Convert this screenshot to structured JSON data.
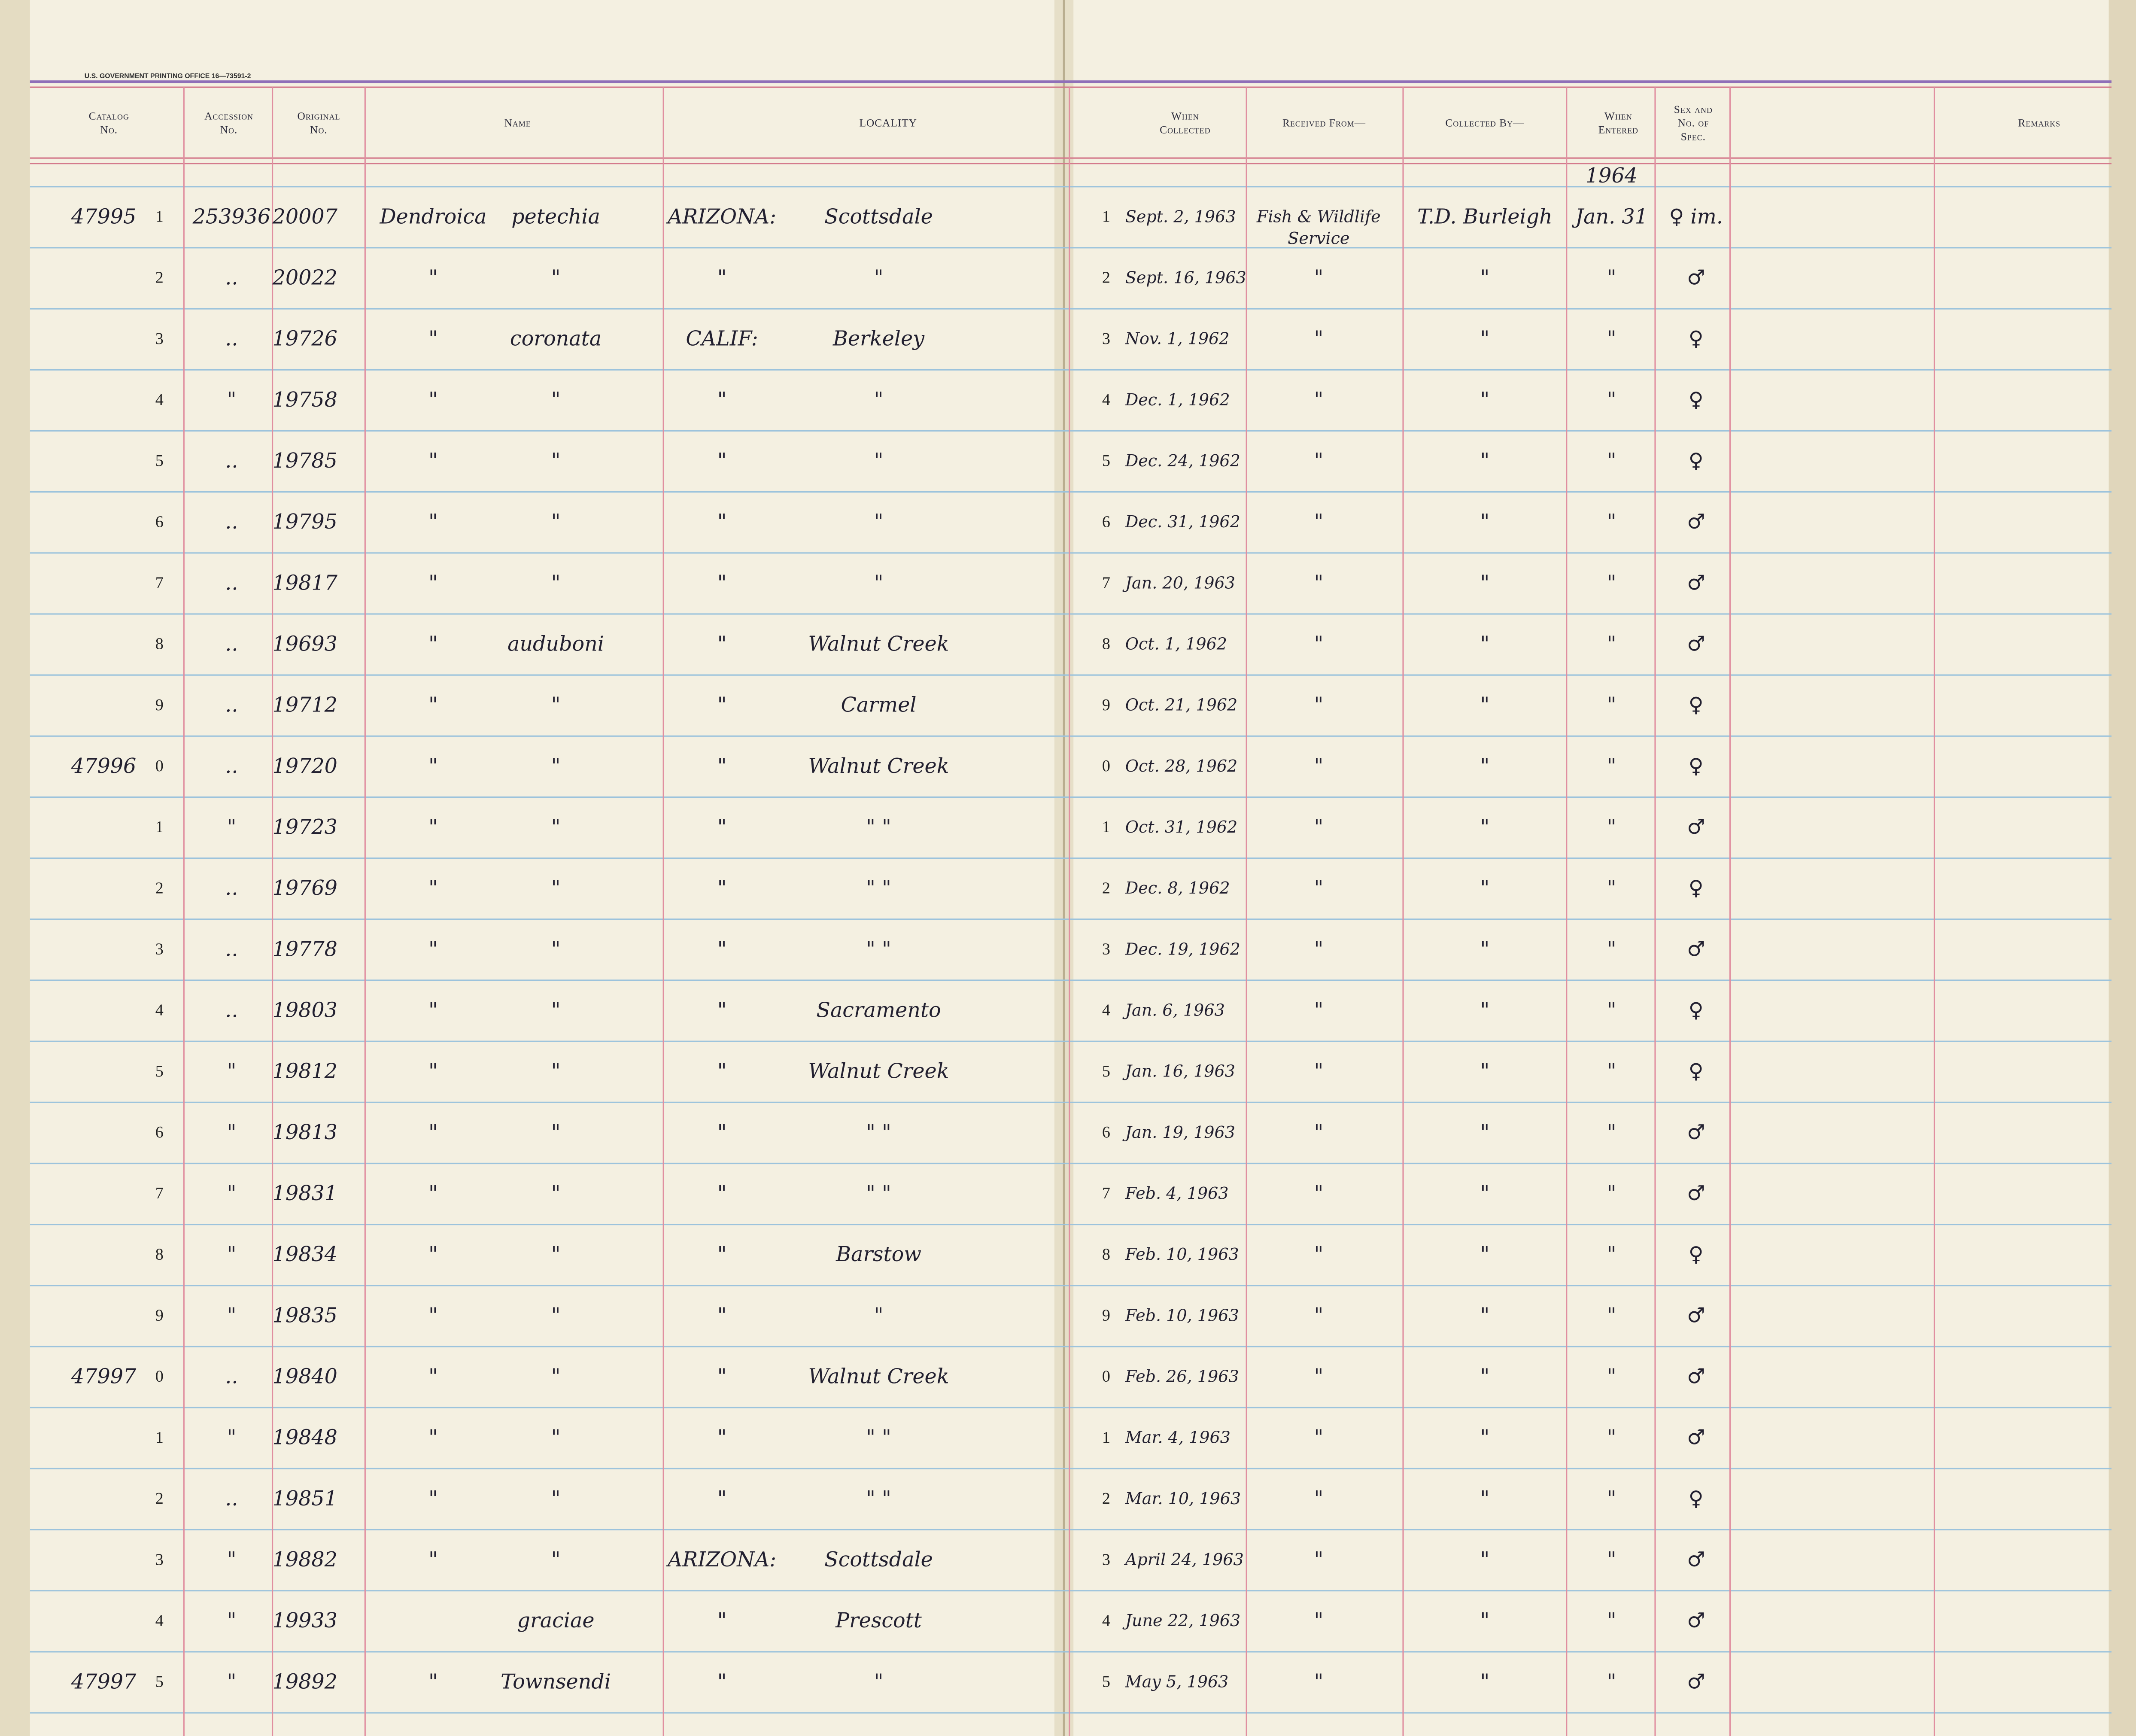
{
  "header": {
    "printer": "U.S. GOVERNMENT PRINTING OFFICE   16—73591-2",
    "columns": [
      {
        "key": "catalog",
        "lines": [
          "Catalog",
          "No."
        ]
      },
      {
        "key": "accession",
        "lines": [
          "Accession",
          "No."
        ]
      },
      {
        "key": "original",
        "lines": [
          "Original",
          "No."
        ]
      },
      {
        "key": "name",
        "lines": [
          "Name"
        ]
      },
      {
        "key": "locality",
        "lines": [
          "LOCALITY"
        ]
      },
      {
        "key": "collected",
        "lines": [
          "When",
          "Collected"
        ]
      },
      {
        "key": "received",
        "lines": [
          "Received From—"
        ]
      },
      {
        "key": "collected_by",
        "lines": [
          "Collected By—"
        ]
      },
      {
        "key": "entered",
        "lines": [
          "When",
          "Entered"
        ]
      },
      {
        "key": "sex",
        "lines": [
          "Sex and",
          "No. of",
          "Spec."
        ]
      },
      {
        "key": "remarks",
        "lines": [
          "Remarks"
        ]
      }
    ],
    "entered_year": "1964"
  },
  "table": {
    "rows": [
      {
        "catalog": "47995",
        "num": "1",
        "accession": "253936",
        "original": "20007",
        "genus": "Dendroica",
        "species": "petechia",
        "state": "ARIZONA:",
        "city": "Scottsdale",
        "cnum": "1",
        "collected": "Sept. 2, 1963",
        "received": [
          "Fish & Wildlife",
          "Service"
        ],
        "collected_by": "T.D. Burleigh",
        "entered": "Jan. 31",
        "sex": "♀ im."
      },
      {
        "num": "2",
        "accession": "..",
        "original": "20022",
        "genus": "\"",
        "species": "\"",
        "state": "\"",
        "city": "\"",
        "cnum": "2",
        "collected": "Sept. 16, 1963",
        "received": "\"",
        "collected_by": "\"",
        "entered": "\"",
        "sex": "♂"
      },
      {
        "num": "3",
        "accession": "..",
        "original": "19726",
        "genus": "\"",
        "species": "coronata",
        "state": "CALIF:",
        "city": "Berkeley",
        "cnum": "3",
        "collected": "Nov. 1, 1962",
        "received": "\"",
        "collected_by": "\"",
        "entered": "\"",
        "sex": "♀"
      },
      {
        "num": "4",
        "accession": "\"",
        "original": "19758",
        "genus": "\"",
        "species": "\"",
        "state": "\"",
        "city": "\"",
        "cnum": "4",
        "collected": "Dec. 1, 1962",
        "received": "\"",
        "collected_by": "\"",
        "entered": "\"",
        "sex": "♀"
      },
      {
        "num": "5",
        "accession": "..",
        "original": "19785",
        "genus": "\"",
        "species": "\"",
        "state": "\"",
        "city": "\"",
        "cnum": "5",
        "collected": "Dec. 24, 1962",
        "received": "\"",
        "collected_by": "\"",
        "entered": "\"",
        "sex": "♀"
      },
      {
        "num": "6",
        "accession": "..",
        "original": "19795",
        "genus": "\"",
        "species": "\"",
        "state": "\"",
        "city": "\"",
        "cnum": "6",
        "collected": "Dec. 31, 1962",
        "received": "\"",
        "collected_by": "\"",
        "entered": "\"",
        "sex": "♂"
      },
      {
        "num": "7",
        "accession": "..",
        "original": "19817",
        "genus": "\"",
        "species": "\"",
        "state": "\"",
        "city": "\"",
        "cnum": "7",
        "collected": "Jan. 20, 1963",
        "received": "\"",
        "collected_by": "\"",
        "entered": "\"",
        "sex": "♂"
      },
      {
        "num": "8",
        "accession": "..",
        "original": "19693",
        "genus": "\"",
        "species": "auduboni",
        "state": "\"",
        "city": "Walnut Creek",
        "cnum": "8",
        "collected": "Oct. 1, 1962",
        "received": "\"",
        "collected_by": "\"",
        "entered": "\"",
        "sex": "♂"
      },
      {
        "num": "9",
        "accession": "..",
        "original": "19712",
        "genus": "\"",
        "species": "\"",
        "state": "\"",
        "city": "Carmel",
        "cnum": "9",
        "collected": "Oct. 21, 1962",
        "received": "\"",
        "collected_by": "\"",
        "entered": "\"",
        "sex": "♀"
      },
      {
        "catalog": "47996",
        "num": "0",
        "accession": "..",
        "original": "19720",
        "genus": "\"",
        "species": "\"",
        "state": "\"",
        "city": "Walnut Creek",
        "cnum": "0",
        "collected": "Oct. 28, 1962",
        "received": "\"",
        "collected_by": "\"",
        "entered": "\"",
        "sex": "♀"
      },
      {
        "num": "1",
        "accession": "\"",
        "original": "19723",
        "genus": "\"",
        "species": "\"",
        "state": "\"",
        "city": "\"   \"",
        "cnum": "1",
        "collected": "Oct. 31, 1962",
        "received": "\"",
        "collected_by": "\"",
        "entered": "\"",
        "sex": "♂"
      },
      {
        "num": "2",
        "accession": "..",
        "original": "19769",
        "genus": "\"",
        "species": "\"",
        "state": "\"",
        "city": "\"   \"",
        "cnum": "2",
        "collected": "Dec. 8, 1962",
        "received": "\"",
        "collected_by": "\"",
        "entered": "\"",
        "sex": "♀"
      },
      {
        "num": "3",
        "accession": "..",
        "original": "19778",
        "genus": "\"",
        "species": "\"",
        "state": "\"",
        "city": "\"   \"",
        "cnum": "3",
        "collected": "Dec. 19, 1962",
        "received": "\"",
        "collected_by": "\"",
        "entered": "\"",
        "sex": "♂"
      },
      {
        "num": "4",
        "accession": "..",
        "original": "19803",
        "genus": "\"",
        "species": "\"",
        "state": "\"",
        "city": "Sacramento",
        "cnum": "4",
        "collected": "Jan. 6, 1963",
        "received": "\"",
        "collected_by": "\"",
        "entered": "\"",
        "sex": "♀"
      },
      {
        "num": "5",
        "accession": "\"",
        "original": "19812",
        "genus": "\"",
        "species": "\"",
        "state": "\"",
        "city": "Walnut Creek",
        "cnum": "5",
        "collected": "Jan. 16, 1963",
        "received": "\"",
        "collected_by": "\"",
        "entered": "\"",
        "sex": "♀"
      },
      {
        "num": "6",
        "accession": "\"",
        "original": "19813",
        "genus": "\"",
        "species": "\"",
        "state": "\"",
        "city": "\"   \"",
        "cnum": "6",
        "collected": "Jan. 19, 1963",
        "received": "\"",
        "collected_by": "\"",
        "entered": "\"",
        "sex": "♂"
      },
      {
        "num": "7",
        "accession": "\"",
        "original": "19831",
        "genus": "\"",
        "species": "\"",
        "state": "\"",
        "city": "\"   \"",
        "cnum": "7",
        "collected": "Feb. 4, 1963",
        "received": "\"",
        "collected_by": "\"",
        "entered": "\"",
        "sex": "♂"
      },
      {
        "num": "8",
        "accession": "\"",
        "original": "19834",
        "genus": "\"",
        "species": "\"",
        "state": "\"",
        "city": "Barstow",
        "cnum": "8",
        "collected": "Feb. 10, 1963",
        "received": "\"",
        "collected_by": "\"",
        "entered": "\"",
        "sex": "♀"
      },
      {
        "num": "9",
        "accession": "\"",
        "original": "19835",
        "genus": "\"",
        "species": "\"",
        "state": "\"",
        "city": "\"",
        "cnum": "9",
        "collected": "Feb. 10, 1963",
        "received": "\"",
        "collected_by": "\"",
        "entered": "\"",
        "sex": "♂"
      },
      {
        "catalog": "47997",
        "num": "0",
        "accession": "..",
        "original": "19840",
        "genus": "\"",
        "species": "\"",
        "state": "\"",
        "city": "Walnut Creek",
        "cnum": "0",
        "collected": "Feb. 26, 1963",
        "received": "\"",
        "collected_by": "\"",
        "entered": "\"",
        "sex": "♂"
      },
      {
        "num": "1",
        "accession": "\"",
        "original": "19848",
        "genus": "\"",
        "species": "\"",
        "state": "\"",
        "city": "\"   \"",
        "cnum": "1",
        "collected": "Mar. 4, 1963",
        "received": "\"",
        "collected_by": "\"",
        "entered": "\"",
        "sex": "♂"
      },
      {
        "num": "2",
        "accession": "..",
        "original": "19851",
        "genus": "\"",
        "species": "\"",
        "state": "\"",
        "city": "\"   \"",
        "cnum": "2",
        "collected": "Mar. 10, 1963",
        "received": "\"",
        "collected_by": "\"",
        "entered": "\"",
        "sex": "♀"
      },
      {
        "num": "3",
        "accession": "\"",
        "original": "19882",
        "genus": "\"",
        "species": "\"",
        "state": "ARIZONA:",
        "city": "Scottsdale",
        "cnum": "3",
        "collected": "April 24, 1963",
        "received": "\"",
        "collected_by": "\"",
        "entered": "\"",
        "sex": "♂"
      },
      {
        "num": "4",
        "accession": "\"",
        "original": "19933",
        "species": "graciae",
        "state": "\"",
        "city": "Prescott",
        "cnum": "4",
        "collected": "June 22, 1963",
        "received": "\"",
        "collected_by": "\"",
        "entered": "\"",
        "sex": "♂"
      },
      {
        "catalog": "47997",
        "num": "5",
        "accession": "\"",
        "original": "19892",
        "genus": "\"",
        "species": "Townsendi",
        "state": "\"",
        "city": "\"",
        "cnum": "5",
        "collected": "May 5, 1963",
        "received": "\"",
        "collected_by": "\"",
        "entered": "\"",
        "sex": "♂"
      }
    ]
  }
}
